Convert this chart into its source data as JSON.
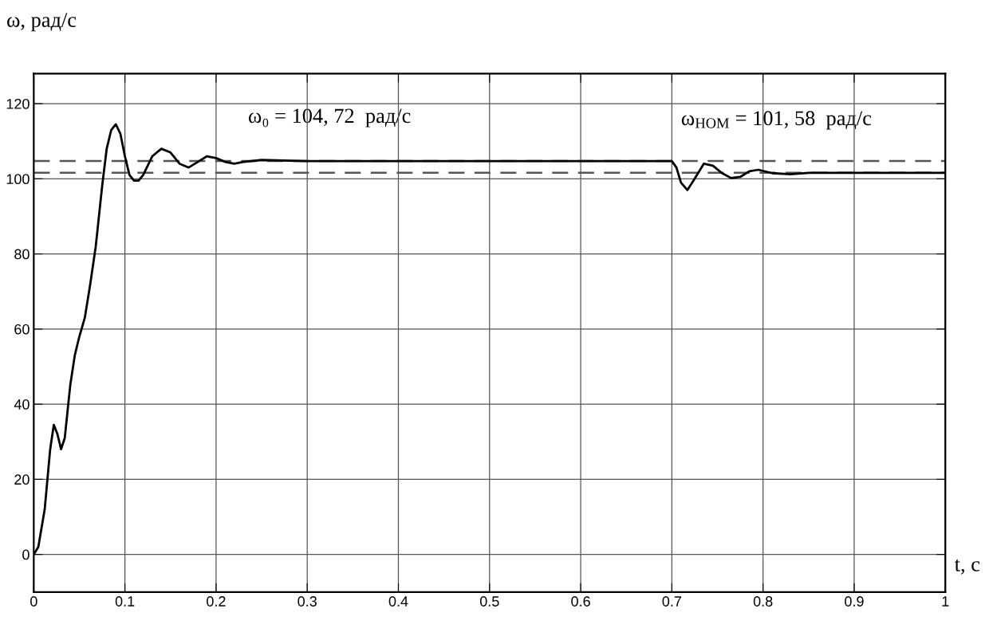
{
  "chart_data": {
    "type": "line",
    "xlabel": "t, с",
    "ylabel": "ω, рад/с",
    "x": [
      0,
      0.005,
      0.012,
      0.018,
      0.022,
      0.026,
      0.03,
      0.034,
      0.04,
      0.045,
      0.05,
      0.056,
      0.062,
      0.068,
      0.075,
      0.08,
      0.085,
      0.09,
      0.095,
      0.1,
      0.105,
      0.11,
      0.115,
      0.12,
      0.13,
      0.14,
      0.15,
      0.16,
      0.17,
      0.18,
      0.19,
      0.2,
      0.21,
      0.22,
      0.23,
      0.25,
      0.3,
      0.5,
      0.7,
      0.705,
      0.71,
      0.717,
      0.725,
      0.735,
      0.745,
      0.755,
      0.765,
      0.775,
      0.785,
      0.795,
      0.81,
      0.83,
      0.85,
      1
    ],
    "series": [
      {
        "color": "#000000",
        "values": [
          0,
          2,
          12,
          28,
          34.5,
          32,
          28,
          31,
          45,
          53,
          58,
          63,
          72,
          82,
          98,
          108,
          113,
          114.5,
          112,
          106,
          101,
          99.5,
          99.5,
          101,
          106,
          108,
          107,
          104,
          103,
          104.5,
          106,
          105.5,
          104.5,
          104,
          104.5,
          105,
          104.7,
          104.7,
          104.7,
          103,
          99,
          97,
          100,
          104,
          103.5,
          101.5,
          100.2,
          100.5,
          102,
          102.4,
          101.5,
          101.2,
          101.6,
          101.6
        ]
      }
    ],
    "ref_lines": [
      {
        "axis": "y",
        "value": 104.72,
        "color": "#555555",
        "line_style": "dashed"
      },
      {
        "axis": "y",
        "value": 101.58,
        "color": "#555555",
        "line_style": "dashed"
      }
    ],
    "annotations": [
      "ω₀ = 104, 72  рад/с",
      "ω$_{НОМ}$ = 101, 58  рад/с"
    ],
    "xlim": [
      0,
      1
    ],
    "xticks": [
      0,
      0.1,
      0.2,
      0.3,
      0.4,
      0.5,
      0.6,
      0.7,
      0.8,
      0.9,
      1
    ],
    "ylim": [
      -10,
      128
    ],
    "yticks": [
      0,
      20,
      40,
      60,
      80,
      100,
      120
    ],
    "grid": true,
    "legend": false,
    "marker": "none",
    "line_style": "solid"
  }
}
